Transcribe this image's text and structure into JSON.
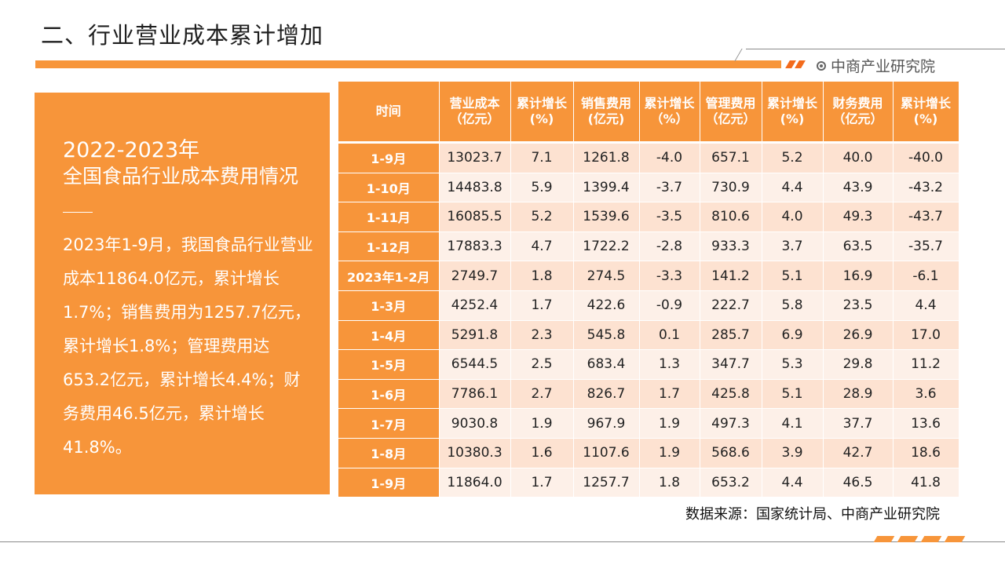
{
  "page_title": "二、行业营业成本累计增加",
  "brand": "中商产业研究院",
  "panel": {
    "title_line1": "2022-2023年",
    "title_line2": "全国食品行业成本费用情况",
    "body": "2023年1-9月，我国食品行业营业成本11864.0亿元，累计增长1.7%；销售费用为1257.7亿元，累计增长1.8%；管理费用达653.2亿元，累计增长4.4%；财务费用46.5亿元，累计增长41.8%。"
  },
  "table": {
    "headers": [
      "时间",
      "营业成本（亿元）",
      "累计增长(%)",
      "销售费用(亿元)",
      "累计增长（%）",
      "管理费用（亿元）",
      "累计增长(%)",
      "财务费用（亿元）",
      "累计增长(%)"
    ],
    "rows": [
      [
        "1-9月",
        "13023.7",
        "7.1",
        "1261.8",
        "-4.0",
        "657.1",
        "5.2",
        "40.0",
        "-40.0"
      ],
      [
        "1-10月",
        "14483.8",
        "5.9",
        "1399.4",
        "-3.7",
        "730.9",
        "4.4",
        "43.9",
        "-43.2"
      ],
      [
        "1-11月",
        "16085.5",
        "5.2",
        "1539.6",
        "-3.5",
        "810.6",
        "4.0",
        "49.3",
        "-43.7"
      ],
      [
        "1-12月",
        "17883.3",
        "4.7",
        "1722.2",
        "-2.8",
        "933.3",
        "3.7",
        "63.5",
        "-35.7"
      ],
      [
        "2023年1-2月",
        "2749.7",
        "1.8",
        "274.5",
        "-3.3",
        "141.2",
        "5.1",
        "16.9",
        "-6.1"
      ],
      [
        "1-3月",
        "4252.4",
        "1.7",
        "422.6",
        "-0.9",
        "222.7",
        "5.8",
        "23.5",
        "4.4"
      ],
      [
        "1-4月",
        "5291.8",
        "2.3",
        "545.8",
        "0.1",
        "285.7",
        "6.9",
        "26.9",
        "17.0"
      ],
      [
        "1-5月",
        "6544.5",
        "2.5",
        "683.4",
        "1.3",
        "347.7",
        "5.3",
        "29.8",
        "11.2"
      ],
      [
        "1-6月",
        "7786.1",
        "2.7",
        "826.7",
        "1.7",
        "425.8",
        "5.1",
        "28.9",
        "3.6"
      ],
      [
        "1-7月",
        "9030.8",
        "1.9",
        "967.9",
        "1.9",
        "497.3",
        "4.1",
        "37.7",
        "13.6"
      ],
      [
        "1-8月",
        "10380.3",
        "1.6",
        "1107.6",
        "1.9",
        "568.6",
        "3.9",
        "42.7",
        "18.6"
      ],
      [
        "1-9月",
        "11864.0",
        "1.7",
        "1257.7",
        "1.8",
        "653.2",
        "4.4",
        "46.5",
        "41.8"
      ]
    ]
  },
  "source": "数据来源：国家统计局、中商产业研究院",
  "colors": {
    "accent": "#f7953a",
    "accent_dark": "#f36b1c",
    "row_odd": "#fde2d1",
    "row_even": "#fdf0e8"
  }
}
